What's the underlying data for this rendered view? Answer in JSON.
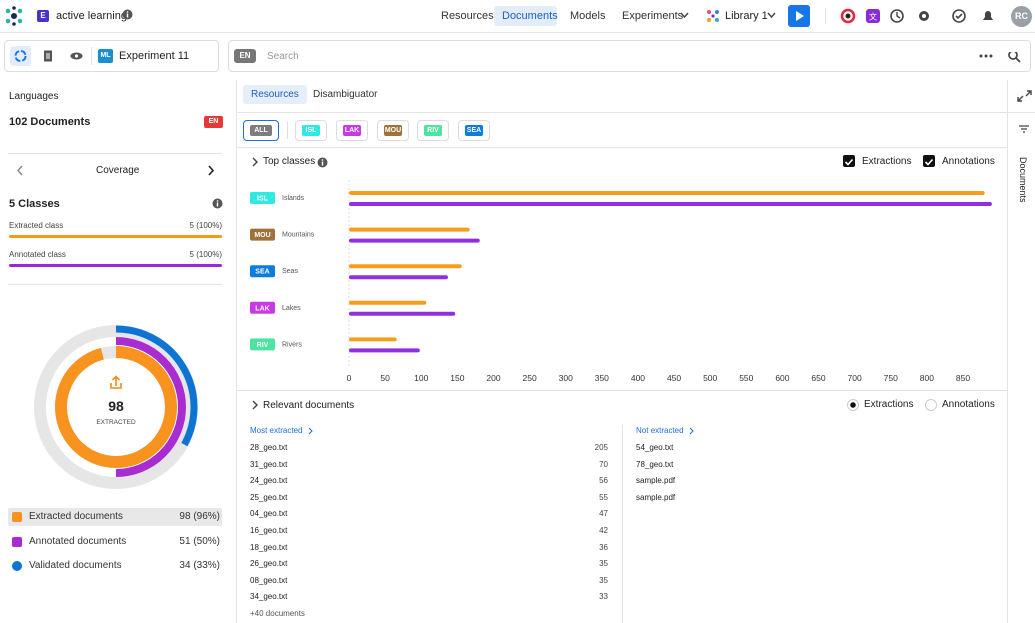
{
  "header": {
    "workspace_badge": "E",
    "app_name": "active learning",
    "nav": [
      "Resources",
      "Documents",
      "Models",
      "Experiments"
    ],
    "library": "Library 1",
    "avatar": "RC"
  },
  "toolbar": {
    "experiment_badge": "ML",
    "experiment": "Experiment 11",
    "language": "EN",
    "search_placeholder": "Search"
  },
  "sidebar": {
    "languages_label": "Languages",
    "documents": "102 Documents",
    "language_badge": "EN",
    "coverage": "Coverage",
    "classes": "5 Classes",
    "class_bars": [
      {
        "label": "Extracted class",
        "value_label": "5 (100%)",
        "percent": 100,
        "color": "#f39a16"
      },
      {
        "label": "Annotated class",
        "value_label": "5 (100%)",
        "percent": 100,
        "color": "#9b27d8"
      }
    ],
    "donut_label": "EXTRACTED",
    "stats": [
      {
        "label": "Extracted documents",
        "count": 98,
        "value_label": "98 (96%)",
        "percent": 96,
        "color": "#f7931e"
      },
      {
        "label": "Annotated documents",
        "count": 51,
        "value_label": "51 (50%)",
        "percent": 50,
        "color": "#a82ccf"
      },
      {
        "label": "Validated documents",
        "count": 34,
        "value_label": "34 (33%)",
        "percent": 33,
        "color": "#0d74d4"
      }
    ]
  },
  "tabs": [
    "Resources",
    "Disambiguator"
  ],
  "filters": [
    {
      "label": "ALL",
      "color": "#7d7d7d"
    },
    {
      "label": "ISL",
      "color": "#2fe9e2"
    },
    {
      "label": "LAK",
      "color": "#c73be6"
    },
    {
      "label": "MOU",
      "color": "#a0723a"
    },
    {
      "label": "RIV",
      "color": "#4de3a0"
    },
    {
      "label": "SEA",
      "color": "#0b7ddf"
    }
  ],
  "chart_data": {
    "type": "bar",
    "orientation": "horizontal",
    "title": "Top classes",
    "categories": [
      "Islands",
      "Mountains",
      "Seas",
      "Lakes",
      "Rivers"
    ],
    "category_badges": [
      "ISL",
      "MOU",
      "SEA",
      "LAK",
      "RIV"
    ],
    "badge_colors": [
      "#2fe9e2",
      "#a0723a",
      "#0b7ddf",
      "#c73be6",
      "#4de3a0"
    ],
    "series": [
      {
        "name": "Extractions",
        "color": "#f59e1b",
        "values": [
          880,
          167,
          156,
          107,
          66
        ]
      },
      {
        "name": "Annotations",
        "color": "#9330dd",
        "values": [
          890,
          181,
          137,
          147,
          98
        ]
      }
    ],
    "xlim": [
      0,
      892
    ],
    "xticks": [
      0,
      50,
      100,
      150,
      200,
      250,
      300,
      350,
      400,
      450,
      500,
      550,
      600,
      650,
      700,
      750,
      800,
      850
    ]
  },
  "relevant": {
    "title": "Relevant documents",
    "modes": [
      "Extractions",
      "Annotations"
    ],
    "most_extracted": {
      "title": "Most extracted",
      "rows": [
        {
          "name": "28_geo.txt",
          "count": 205
        },
        {
          "name": "31_geo.txt",
          "count": 70
        },
        {
          "name": "24_geo.txt",
          "count": 56
        },
        {
          "name": "25_geo.txt",
          "count": 55
        },
        {
          "name": "04_geo.txt",
          "count": 47
        },
        {
          "name": "16_geo.txt",
          "count": 42
        },
        {
          "name": "18_geo.txt",
          "count": 36
        },
        {
          "name": "26_geo.txt",
          "count": 35
        },
        {
          "name": "08_geo.txt",
          "count": 35
        },
        {
          "name": "34_geo.txt",
          "count": 33
        }
      ],
      "more": "+40 documents"
    },
    "not_extracted": {
      "title": "Not extracted",
      "rows": [
        "54_geo.txt",
        "78_geo.txt",
        "sample.pdf",
        "sample.pdf"
      ]
    }
  },
  "side_panel": "Documents"
}
